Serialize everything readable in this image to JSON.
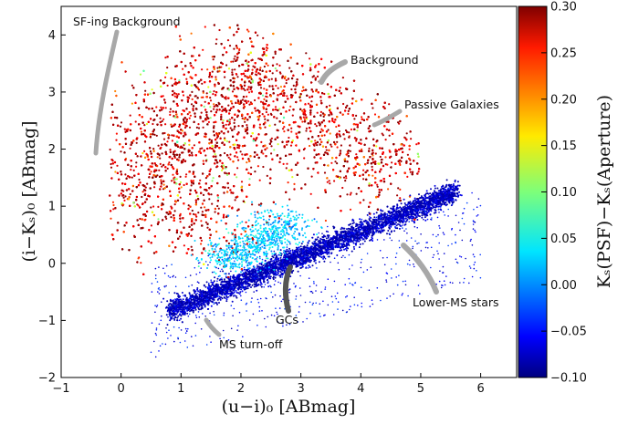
{
  "chart_data": {
    "type": "scatter",
    "title": "",
    "xlabel": "(u−i)₀ [ABmag]",
    "ylabel": "(i−Kₛ)₀ [ABmag]",
    "xlim": [
      -1,
      6.6
    ],
    "ylim": [
      -2,
      4.5
    ],
    "x_ticks": [
      "−1",
      "0",
      "1",
      "2",
      "3",
      "4",
      "5",
      "6"
    ],
    "y_ticks": [
      "−2",
      "−1",
      "0",
      "1",
      "2",
      "3",
      "4"
    ],
    "colorbar": {
      "label": "Kₛ(PSF)−Kₛ(Aperture)",
      "range": [
        -0.1,
        0.3
      ],
      "ticks": [
        "−0.10",
        "−0.05",
        "0.00",
        "0.05",
        "0.10",
        "0.15",
        "0.20",
        "0.25",
        "0.30"
      ],
      "colormap": "jet"
    },
    "grid": false,
    "series": [
      {
        "name": "Background",
        "color_value": 0.3,
        "approx_points": [
          [
            0.0,
            1.0
          ],
          [
            0.5,
            2.0
          ],
          [
            1.0,
            2.5
          ],
          [
            1.5,
            3.0
          ],
          [
            2.0,
            3.3
          ],
          [
            2.5,
            3.0
          ],
          [
            3.0,
            2.6
          ],
          [
            3.5,
            2.2
          ],
          [
            4.0,
            2.0
          ],
          [
            4.5,
            1.8
          ],
          [
            1.0,
            1.5
          ],
          [
            2.0,
            2.0
          ],
          [
            1.5,
            0.8
          ]
        ]
      },
      {
        "name": "Lower-MS stars",
        "color_value": -0.1,
        "approx_points": [
          [
            0.8,
            -0.8
          ],
          [
            1.5,
            -0.45
          ],
          [
            2.5,
            -0.05
          ],
          [
            3.5,
            0.35
          ],
          [
            4.5,
            0.75
          ],
          [
            5.0,
            1.0
          ],
          [
            5.5,
            1.4
          ]
        ]
      },
      {
        "name": "GCs",
        "color_value": 0.03,
        "approx_points": [
          [
            1.8,
            0.1
          ],
          [
            2.1,
            0.25
          ],
          [
            2.4,
            0.45
          ],
          [
            2.7,
            0.65
          ]
        ]
      }
    ],
    "annotations": [
      {
        "text": "SF-ing Background",
        "points_to": [
          -0.4,
          2.5
        ]
      },
      {
        "text": "Background",
        "points_to": [
          3.2,
          3.1
        ]
      },
      {
        "text": "Passive Galaxies",
        "points_to": [
          3.7,
          2.1
        ]
      },
      {
        "text": "Lower-MS stars",
        "points_to": [
          4.6,
          0.5
        ]
      },
      {
        "text": "GCs",
        "points_to": [
          2.5,
          0.0
        ]
      },
      {
        "text": "MS turn-off",
        "points_to": [
          1.2,
          -1.0
        ]
      }
    ]
  }
}
